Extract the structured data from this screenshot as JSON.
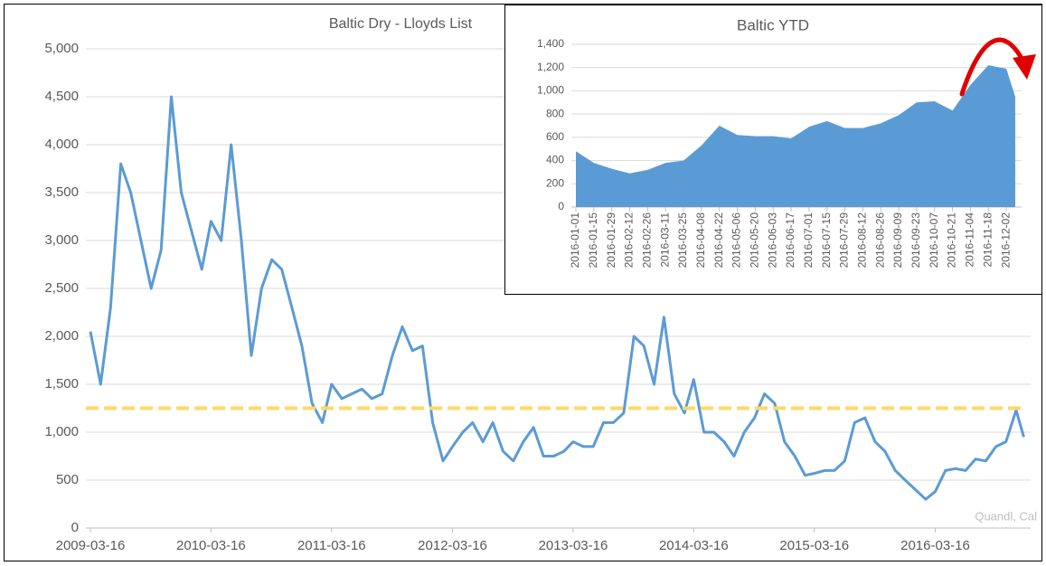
{
  "chart_data": [
    {
      "type": "line",
      "title": "Baltic Dry - Lloyds List",
      "source": "Quandl, Cal",
      "x": [
        "2009-03-16",
        "2009-04-16",
        "2009-05-16",
        "2009-06-16",
        "2009-07-16",
        "2009-08-16",
        "2009-09-16",
        "2009-10-16",
        "2009-11-16",
        "2009-12-16",
        "2010-01-16",
        "2010-02-16",
        "2010-03-16",
        "2010-04-16",
        "2010-05-16",
        "2010-06-16",
        "2010-07-16",
        "2010-08-16",
        "2010-09-16",
        "2010-10-16",
        "2010-11-16",
        "2010-12-16",
        "2011-01-16",
        "2011-02-16",
        "2011-03-16",
        "2011-04-16",
        "2011-05-16",
        "2011-06-16",
        "2011-07-16",
        "2011-08-16",
        "2011-09-16",
        "2011-10-16",
        "2011-11-16",
        "2011-12-16",
        "2012-01-16",
        "2012-02-16",
        "2012-03-16",
        "2012-04-16",
        "2012-05-16",
        "2012-06-16",
        "2012-07-16",
        "2012-08-16",
        "2012-09-16",
        "2012-10-16",
        "2012-11-16",
        "2012-12-16",
        "2013-01-16",
        "2013-02-16",
        "2013-03-16",
        "2013-04-16",
        "2013-05-16",
        "2013-06-16",
        "2013-07-16",
        "2013-08-16",
        "2013-09-16",
        "2013-10-16",
        "2013-11-16",
        "2013-12-16",
        "2014-01-16",
        "2014-02-16",
        "2014-03-16",
        "2014-04-16",
        "2014-05-16",
        "2014-06-16",
        "2014-07-16",
        "2014-08-16",
        "2014-09-16",
        "2014-10-16",
        "2014-11-16",
        "2014-12-16",
        "2015-01-16",
        "2015-02-16",
        "2015-03-16",
        "2015-04-16",
        "2015-05-16",
        "2015-06-16",
        "2015-07-16",
        "2015-08-16",
        "2015-09-16",
        "2015-10-16",
        "2015-11-16",
        "2015-12-16",
        "2016-01-16",
        "2016-02-16",
        "2016-03-16",
        "2016-04-16",
        "2016-05-16",
        "2016-06-16",
        "2016-07-16",
        "2016-08-16",
        "2016-09-16",
        "2016-10-16",
        "2016-11-16",
        "2016-12-09"
      ],
      "values": [
        2050,
        1500,
        2300,
        3800,
        3500,
        3000,
        2500,
        2900,
        4500,
        3500,
        3100,
        2700,
        3200,
        3000,
        4000,
        3000,
        1800,
        2500,
        2800,
        2700,
        2300,
        1900,
        1300,
        1100,
        1500,
        1350,
        1400,
        1450,
        1350,
        1400,
        1800,
        2100,
        1850,
        1900,
        1100,
        700,
        850,
        1000,
        1100,
        900,
        1100,
        800,
        700,
        900,
        1050,
        750,
        750,
        800,
        900,
        850,
        850,
        1100,
        1100,
        1200,
        2000,
        1900,
        1500,
        2200,
        1400,
        1200,
        1550,
        1000,
        1000,
        900,
        750,
        1000,
        1150,
        1400,
        1300,
        900,
        750,
        550,
        570,
        600,
        600,
        700,
        1100,
        1150,
        900,
        800,
        600,
        500,
        400,
        300,
        380,
        600,
        620,
        600,
        720,
        700,
        850,
        900,
        1230,
        950
      ],
      "color": "#5b9bd5",
      "reference_line": 1250,
      "reference_color": "#ffd966",
      "xlim": [
        "2009-03-16",
        "2016-12-16"
      ],
      "xticks": [
        "2009-03-16",
        "2010-03-16",
        "2011-03-16",
        "2012-03-16",
        "2013-03-16",
        "2014-03-16",
        "2015-03-16",
        "2016-03-16"
      ],
      "ylim": [
        0,
        5000
      ],
      "yticks": [
        0,
        500,
        {
          "value": 1000,
          "label": "1,000"
        },
        {
          "value": 1500,
          "label": "1,500"
        },
        {
          "value": 2000,
          "label": "2,000"
        },
        {
          "value": 2500,
          "label": "2,500"
        },
        {
          "value": 3000,
          "label": "3,000"
        },
        {
          "value": 3500,
          "label": "3,500"
        },
        {
          "value": 4000,
          "label": "4,000"
        },
        {
          "value": 4500,
          "label": "4,500"
        },
        {
          "value": 5000,
          "label": "5,000"
        }
      ],
      "grid": true
    },
    {
      "type": "area",
      "title": "Baltic YTD",
      "x": [
        "2016-01-01",
        "2016-01-15",
        "2016-01-29",
        "2016-02-12",
        "2016-02-26",
        "2016-03-11",
        "2016-03-25",
        "2016-04-08",
        "2016-04-22",
        "2016-05-06",
        "2016-05-20",
        "2016-06-03",
        "2016-06-17",
        "2016-07-01",
        "2016-07-15",
        "2016-07-29",
        "2016-08-12",
        "2016-08-26",
        "2016-09-09",
        "2016-09-23",
        "2016-10-07",
        "2016-10-21",
        "2016-11-04",
        "2016-11-18",
        "2016-12-02",
        "2016-12-09"
      ],
      "values": [
        480,
        380,
        330,
        290,
        320,
        380,
        400,
        530,
        700,
        620,
        610,
        610,
        590,
        690,
        740,
        680,
        680,
        720,
        790,
        900,
        910,
        830,
        1050,
        1220,
        1190,
        950
      ],
      "color": "#5b9bd5",
      "xlim": [
        "2016-01-01",
        "2016-12-09"
      ],
      "xticks": [
        "2016-01-01",
        "2016-01-15",
        "2016-01-29",
        "2016-02-12",
        "2016-02-26",
        "2016-03-11",
        "2016-03-25",
        "2016-04-08",
        "2016-04-22",
        "2016-05-06",
        "2016-05-20",
        "2016-06-03",
        "2016-06-17",
        "2016-07-01",
        "2016-07-15",
        "2016-07-29",
        "2016-08-12",
        "2016-08-26",
        "2016-09-09",
        "2016-09-23",
        "2016-10-07",
        "2016-10-21",
        "2016-11-04",
        "2016-11-18",
        "2016-12-02"
      ],
      "ylim": [
        0,
        1400
      ],
      "yticks": [
        0,
        200,
        400,
        600,
        800,
        {
          "value": 1000,
          "label": "1,000"
        },
        {
          "value": 1200,
          "label": "1,200"
        },
        {
          "value": 1400,
          "label": "1,400"
        }
      ],
      "grid": true
    }
  ]
}
